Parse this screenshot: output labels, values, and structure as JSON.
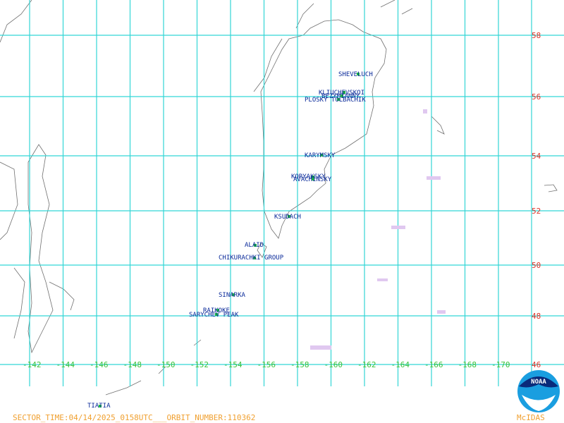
{
  "map": {
    "lat_labels": [
      "58",
      "56",
      "54",
      "52",
      "50",
      "48",
      "46"
    ],
    "lon_labels": [
      "-142",
      "-144",
      "-146",
      "-148",
      "-150",
      "-152",
      "-154",
      "-156",
      "-158",
      "-160",
      "-162",
      "-164",
      "-166",
      "-168",
      "-170"
    ],
    "volcanoes": [
      "SHEVELUCH",
      "KLIUCHEVSKOI",
      "BEZYMIANNY",
      "PLOSKY TOLBACHIK",
      "KARYMSKY",
      "KORYAKSKY",
      "AVACHINSKY",
      "KSUDACH",
      "ALAID",
      "CHIKURACHKI GROUP",
      "SINARKA",
      "RAIKOKE",
      "SARYCHEV PEAK",
      "TIATIA"
    ],
    "footer": "SECTOR_TIME:04/14/2025_0158UTC___ORBIT_NUMBER:110362",
    "credit": "McIDAS",
    "logo": "NOAA"
  }
}
